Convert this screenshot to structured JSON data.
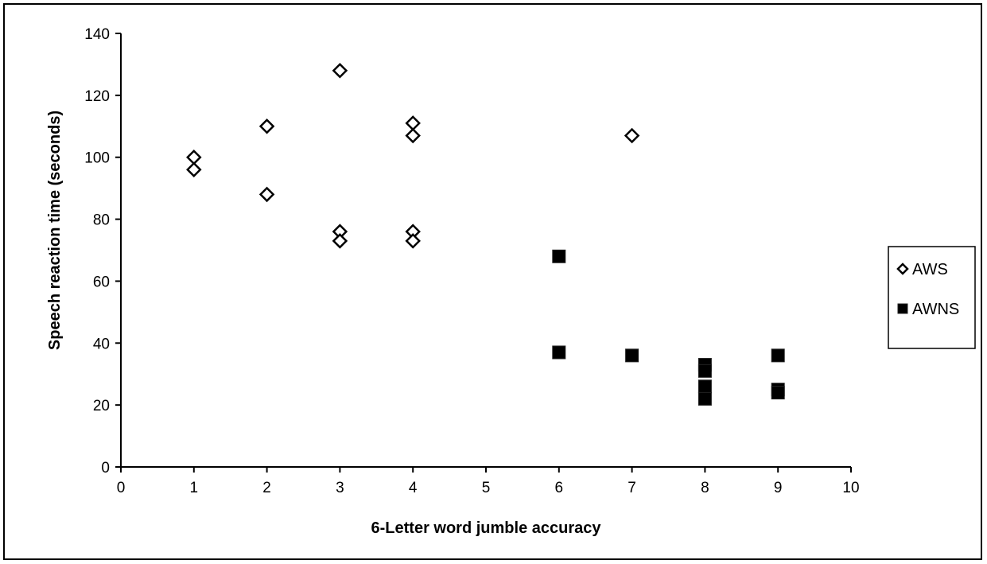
{
  "chart_data": {
    "type": "scatter",
    "title": "",
    "xlabel": "6-Letter word jumble accuracy",
    "ylabel": "Speech reaction time (seconds)",
    "xlim": [
      0,
      10
    ],
    "ylim": [
      0,
      140
    ],
    "xticks": [
      "0",
      "1",
      "2",
      "3",
      "4",
      "5",
      "6",
      "7",
      "8",
      "9",
      "10"
    ],
    "yticks": [
      "0",
      "20",
      "40",
      "60",
      "80",
      "100",
      "120",
      "140"
    ],
    "grid": false,
    "legend_position": "right",
    "series": [
      {
        "name": "AWS",
        "marker": "diamond-open",
        "color": "#000000",
        "points": [
          {
            "x": 1,
            "y": 100
          },
          {
            "x": 1,
            "y": 96
          },
          {
            "x": 2,
            "y": 110
          },
          {
            "x": 2,
            "y": 88
          },
          {
            "x": 3,
            "y": 128
          },
          {
            "x": 3,
            "y": 76
          },
          {
            "x": 3,
            "y": 73
          },
          {
            "x": 4,
            "y": 111
          },
          {
            "x": 4,
            "y": 107
          },
          {
            "x": 4,
            "y": 76
          },
          {
            "x": 4,
            "y": 73
          },
          {
            "x": 7,
            "y": 107
          }
        ]
      },
      {
        "name": "AWNS",
        "marker": "square-filled",
        "color": "#000000",
        "points": [
          {
            "x": 6,
            "y": 68
          },
          {
            "x": 6,
            "y": 37
          },
          {
            "x": 7,
            "y": 36
          },
          {
            "x": 8,
            "y": 33
          },
          {
            "x": 8,
            "y": 31
          },
          {
            "x": 8,
            "y": 26
          },
          {
            "x": 8,
            "y": 22
          },
          {
            "x": 9,
            "y": 36
          },
          {
            "x": 9,
            "y": 25
          },
          {
            "x": 9,
            "y": 24
          }
        ]
      }
    ]
  }
}
